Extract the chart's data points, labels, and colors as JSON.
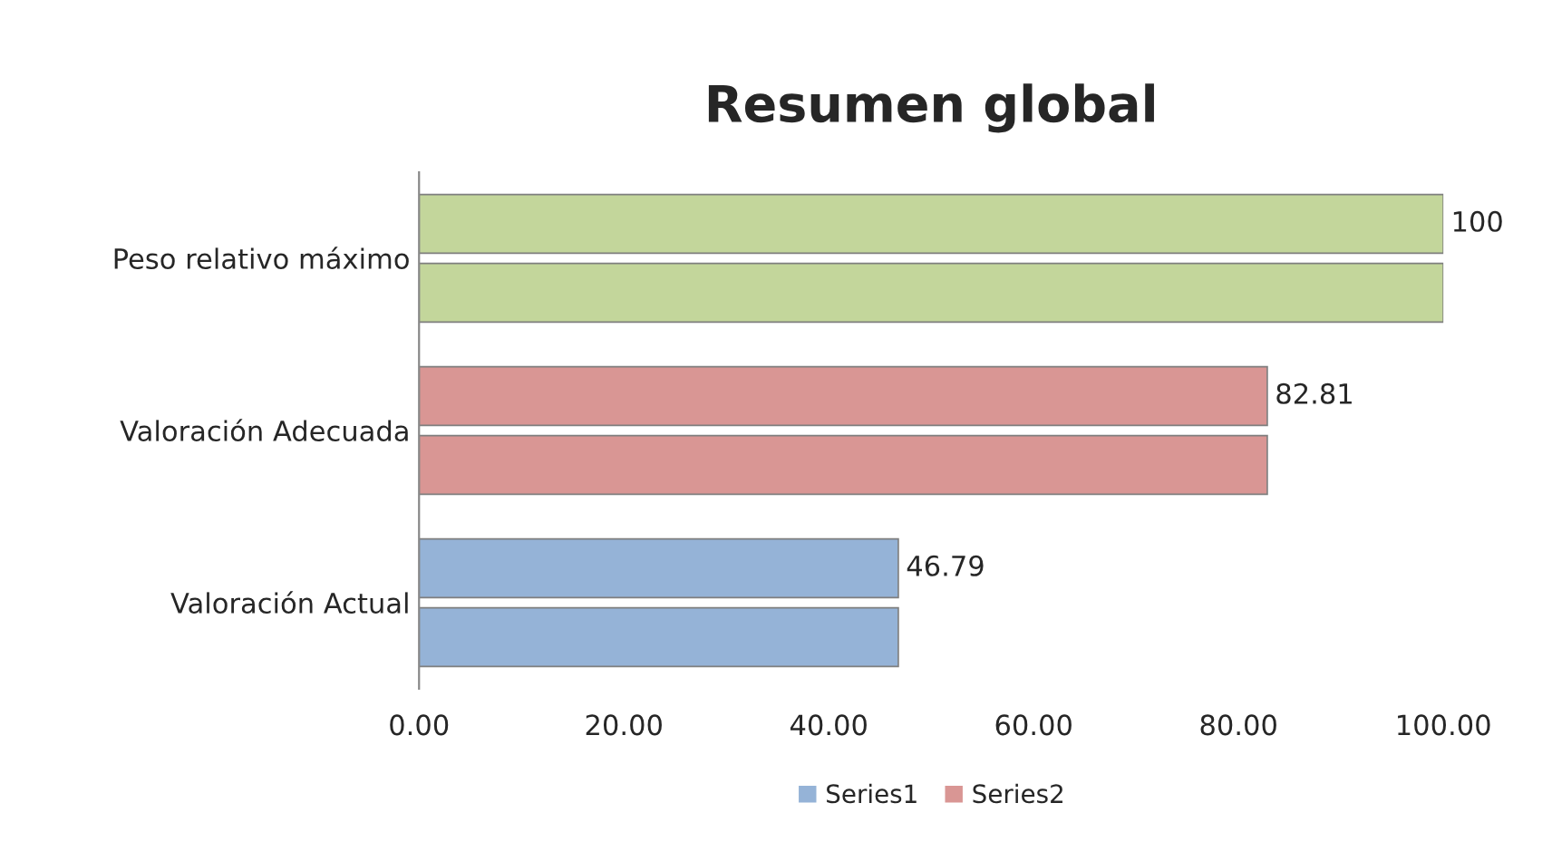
{
  "chart_data": {
    "type": "bar",
    "orientation": "horizontal",
    "title": "Resumen global",
    "categories": [
      "Peso relativo máximo",
      "Valoración Adecuada",
      "Valoración Actual"
    ],
    "series": [
      {
        "name": "Series1",
        "colors": [
          "#c3d69b",
          "#d99694",
          "#95b3d7"
        ],
        "values": [
          100,
          82.81,
          46.79
        ],
        "value_labels": [
          "100",
          "82.81",
          "46.79"
        ]
      },
      {
        "name": "Series2",
        "colors": [
          "#c3d69b",
          "#d99694",
          "#95b3d7"
        ],
        "values": [
          100,
          82.81,
          46.79
        ]
      }
    ],
    "xlim": [
      0,
      100
    ],
    "xticks": [
      {
        "value": 0,
        "label": "0.00"
      },
      {
        "value": 20,
        "label": "20.00"
      },
      {
        "value": 40,
        "label": "40.00"
      },
      {
        "value": 60,
        "label": "60.00"
      },
      {
        "value": 80,
        "label": "80.00"
      },
      {
        "value": 100,
        "label": "100.00"
      }
    ],
    "grid": false,
    "legend": "bottom"
  }
}
